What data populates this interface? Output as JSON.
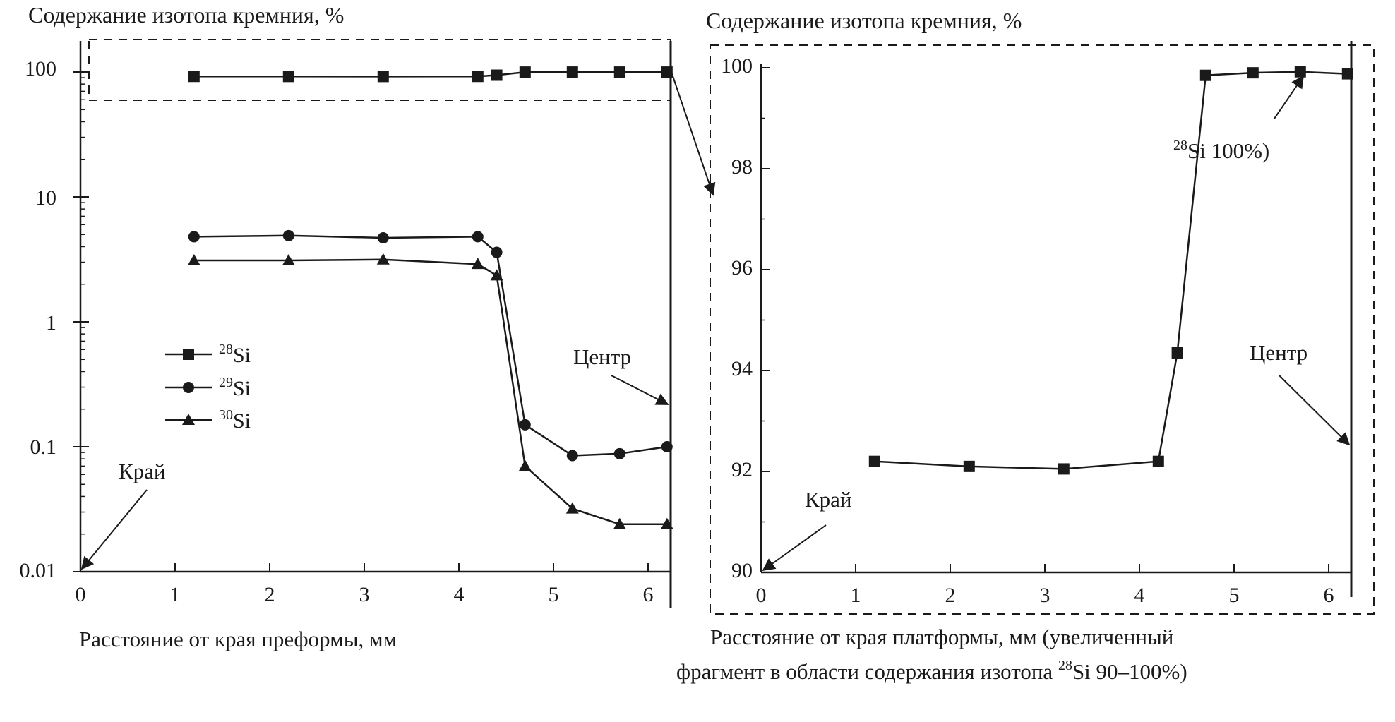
{
  "chart_data": [
    {
      "type": "line",
      "yscale": "log",
      "ylabel": "Содержание изотопа кремния, %",
      "xlabel": "Расстояние от края преформы, мм",
      "xlim": [
        0,
        6.25
      ],
      "ylim": [
        0.01,
        100
      ],
      "xticks": [
        "0",
        "1",
        "2",
        "3",
        "4",
        "5",
        "6"
      ],
      "yticks": [
        "0.01",
        "0.1",
        "1",
        "10",
        "100"
      ],
      "legend_position": "center-left",
      "series": [
        {
          "name": "28",
          "label": "Si",
          "marker": "square",
          "x": [
            1.2,
            2.2,
            3.2,
            4.2,
            4.4,
            4.7,
            5.2,
            5.7,
            6.2
          ],
          "y": [
            92.2,
            92.1,
            92.05,
            92.2,
            94.3,
            99.85,
            99.9,
            99.9,
            99.9
          ]
        },
        {
          "name": "29",
          "label": "Si",
          "marker": "circle",
          "x": [
            1.2,
            2.2,
            3.2,
            4.2,
            4.4,
            4.7,
            5.2,
            5.7,
            6.2
          ],
          "y": [
            4.8,
            4.9,
            4.7,
            4.8,
            3.6,
            0.15,
            0.085,
            0.088,
            0.1
          ]
        },
        {
          "name": "30",
          "label": "Si",
          "marker": "triangle",
          "x": [
            1.2,
            2.2,
            3.2,
            4.2,
            4.4,
            4.7,
            5.2,
            5.7,
            6.2
          ],
          "y": [
            3.1,
            3.1,
            3.15,
            2.9,
            2.35,
            0.07,
            0.032,
            0.024,
            0.024
          ]
        }
      ],
      "annotations": [
        "Центр",
        "Край"
      ]
    },
    {
      "type": "line",
      "ylabel": "Содержание изотопа кремния, %",
      "xlabel_line1": "Расстояние от края платформы, мм (увеличенный",
      "xlabel_line2_pre": "фрагмент в области содержания изотопа ",
      "xlabel_line2_sup": "28",
      "xlabel_line2_post": "Si 90–100%)",
      "xlim": [
        0,
        6.25
      ],
      "ylim": [
        90,
        100
      ],
      "xticks": [
        "0",
        "1",
        "2",
        "3",
        "4",
        "5",
        "6"
      ],
      "yticks": [
        "90",
        "92",
        "94",
        "96",
        "98",
        "100"
      ],
      "series": [
        {
          "name": "28",
          "label": "Si",
          "marker": "square",
          "x": [
            1.2,
            2.2,
            3.2,
            4.2,
            4.4,
            4.7,
            5.2,
            5.7,
            6.2
          ],
          "y": [
            92.2,
            92.1,
            92.05,
            92.2,
            94.35,
            99.85,
            99.9,
            99.92,
            99.88
          ]
        }
      ],
      "annotations": [
        {
          "sup": "28",
          "text": "Si 100%)"
        },
        "Центр",
        "Край"
      ]
    }
  ],
  "colors": {
    "ink": "#1a1a1a",
    "background": "#ffffff"
  }
}
